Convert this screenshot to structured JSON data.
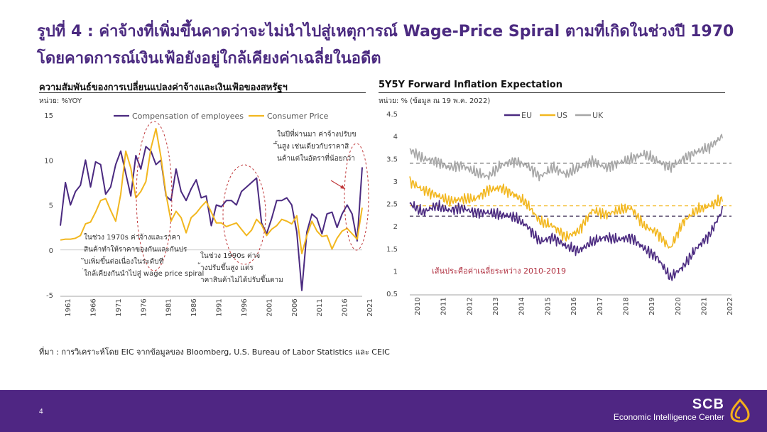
{
  "page": {
    "title": "รูปที่ 4 : ค่าจ้างที่เพิ่มขึ้นคาดว่าจะไม่นำไปสู่เหตุการณ์ Wage-Price Spiral ตามที่เกิดในช่วงปี 1970 โดยคาดการณ์เงินเฟ้อยังอยู่ใกล้เคียงค่าเฉลี่ยในอดีต",
    "source": "ที่มา : การวิเคราะห์โดย EIC จากข้อมูลของ Bloomberg, U.S. Bureau of Labor Statistics และ CEIC",
    "page_number": "4",
    "brand_name": "SCB",
    "brand_sub": "Economic Intelligence Center",
    "colors": {
      "brand_purple": "#4f2683",
      "title_purple": "#4b2a80",
      "logo_gold": "#f5b01a"
    }
  },
  "chart_data": [
    {
      "type": "line",
      "title": "ความสัมพันธ์ของการเปลี่ยนแปลงค่าจ้างและเงินเฟ้อของสหรัฐฯ",
      "unit": "หน่วย: %YOY",
      "x": [
        1961,
        1962,
        1963,
        1964,
        1965,
        1966,
        1967,
        1968,
        1969,
        1970,
        1971,
        1972,
        1973,
        1974,
        1975,
        1976,
        1977,
        1978,
        1979,
        1980,
        1981,
        1982,
        1983,
        1984,
        1985,
        1986,
        1987,
        1988,
        1989,
        1990,
        1991,
        1992,
        1993,
        1994,
        1995,
        1996,
        1997,
        1998,
        1999,
        2000,
        2001,
        2002,
        2003,
        2004,
        2005,
        2006,
        2007,
        2008,
        2009,
        2010,
        2011,
        2012,
        2013,
        2014,
        2015,
        2016,
        2017,
        2018,
        2019,
        2020,
        2021
      ],
      "xticks": [
        "1961",
        "1966",
        "1971",
        "1976",
        "1981",
        "1986",
        "1991",
        "1996",
        "2001",
        "2006",
        "2011",
        "2016",
        "2021"
      ],
      "ylim": [
        -5,
        15
      ],
      "yticks": [
        "-5",
        "0",
        "5",
        "10",
        "15"
      ],
      "legend_position": "top",
      "series": [
        {
          "name": "Compensation of employees",
          "color": "#4b2a80",
          "values": [
            2.7,
            7.5,
            5.0,
            6.5,
            7.2,
            10.0,
            7.0,
            9.8,
            9.5,
            6.2,
            7.0,
            9.5,
            11.0,
            8.5,
            6.0,
            10.5,
            9.0,
            11.5,
            11.0,
            9.5,
            10.0,
            6.0,
            5.5,
            9.0,
            6.5,
            5.5,
            6.8,
            7.8,
            5.8,
            6.0,
            2.7,
            5.0,
            4.8,
            5.5,
            5.5,
            5.0,
            6.5,
            7.0,
            7.5,
            8.0,
            3.0,
            1.8,
            3.5,
            5.5,
            5.5,
            5.8,
            5.0,
            2.0,
            -4.5,
            2.0,
            4.0,
            3.5,
            1.8,
            4.0,
            4.2,
            2.5,
            4.0,
            5.0,
            4.0,
            1.0,
            9.2
          ]
        },
        {
          "name": "Consumer Price",
          "color": "#f2b71f",
          "values": [
            1.1,
            1.2,
            1.2,
            1.3,
            1.6,
            2.9,
            3.1,
            4.2,
            5.5,
            5.7,
            4.4,
            3.2,
            6.2,
            11.0,
            9.1,
            5.8,
            6.5,
            7.6,
            11.3,
            13.5,
            10.3,
            6.2,
            3.2,
            4.3,
            3.6,
            1.9,
            3.6,
            4.1,
            4.8,
            5.4,
            4.2,
            3.0,
            3.0,
            2.6,
            2.8,
            3.0,
            2.3,
            1.6,
            2.2,
            3.4,
            2.8,
            1.6,
            2.3,
            2.7,
            3.4,
            3.2,
            2.9,
            3.8,
            -0.4,
            1.6,
            3.2,
            2.1,
            1.5,
            1.6,
            0.1,
            1.3,
            2.1,
            2.4,
            1.8,
            1.2,
            4.7
          ]
        }
      ],
      "annotations": [
        "ในช่วง 1970s ค่าจ้างและราคาสินค้าทำให้ราคาของกันและกันปรับเพิ่มขึ้นต่อเนื่องในระดับที่ใกล้เคียงกันนำไปสู่ wage price spiral",
        "ในช่วง 1990s ค่าจ้างปรับขึ้นสูง แต่ราคาสินค้าไม่ได้ปรับขึ้นตาม",
        "ในปีที่ผ่านมา ค่าจ้างปรับขึ้นสูง เช่นเดียวกับราคาสินค้าแต่ในอัตราที่น้อยกว่า"
      ]
    },
    {
      "type": "line",
      "title": "5Y5Y Forward Inflation Expectation",
      "unit": "หน่วย: % (ข้อมูล ณ 19 พ.ค. 2022)",
      "x": [
        "2010",
        "2010.5",
        "2011",
        "2011.5",
        "2012",
        "2012.5",
        "2013",
        "2013.5",
        "2014",
        "2014.5",
        "2015",
        "2015.5",
        "2016",
        "2016.5",
        "2017",
        "2017.5",
        "2018",
        "2018.5",
        "2019",
        "2019.5",
        "2020",
        "2020.5",
        "2021",
        "2021.5",
        "2022"
      ],
      "xticks": [
        "2010",
        "2011",
        "2012",
        "2013",
        "2014",
        "2015",
        "2016",
        "2017",
        "2018",
        "2019",
        "2020",
        "2021",
        "2022"
      ],
      "ylim": [
        0.5,
        4.5
      ],
      "yticks": [
        "0.5",
        "1",
        "1.5",
        "2",
        "2.5",
        "3",
        "3.5",
        "4",
        "4.5"
      ],
      "legend_position": "top",
      "series": [
        {
          "name": "EU",
          "color": "#4b2a80",
          "average_2010_2019": 2.22,
          "values": [
            2.5,
            2.3,
            2.45,
            2.35,
            2.4,
            2.3,
            2.3,
            2.25,
            2.2,
            2.0,
            1.65,
            1.75,
            1.55,
            1.45,
            1.65,
            1.75,
            1.7,
            1.75,
            1.5,
            1.3,
            0.85,
            1.1,
            1.5,
            1.8,
            2.35
          ]
        },
        {
          "name": "US",
          "color": "#f2b71f",
          "average_2010_2019": 2.45,
          "values": [
            3.0,
            2.8,
            2.7,
            2.55,
            2.6,
            2.6,
            2.8,
            2.85,
            2.7,
            2.5,
            2.1,
            2.0,
            1.75,
            1.9,
            2.35,
            2.25,
            2.35,
            2.4,
            2.0,
            1.85,
            1.5,
            2.1,
            2.35,
            2.45,
            2.6
          ]
        },
        {
          "name": "UK",
          "color": "#a6a6a6",
          "average_2010_2019": 3.4,
          "values": [
            3.7,
            3.5,
            3.45,
            3.3,
            3.35,
            3.2,
            3.1,
            3.35,
            3.45,
            3.35,
            3.1,
            3.3,
            3.15,
            3.3,
            3.45,
            3.3,
            3.4,
            3.5,
            3.6,
            3.45,
            3.3,
            3.5,
            3.65,
            3.75,
            4.0
          ]
        }
      ],
      "annotations": [
        "เส้นประคือค่าเฉลี่ยระหว่าง 2010-2019"
      ]
    }
  ]
}
